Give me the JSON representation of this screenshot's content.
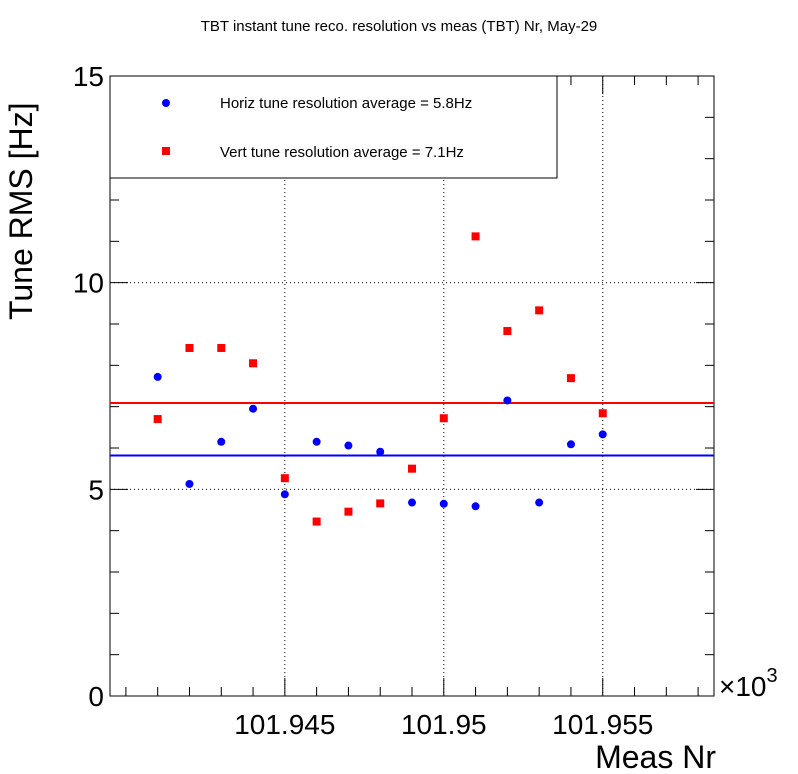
{
  "chart_data": {
    "type": "scatter",
    "title": "TBT instant tune reco. resolution vs meas (TBT) Nr, May-29",
    "xlabel": "Meas Nr",
    "ylabel": "Tune RMS [Hz]",
    "x_multiplier": "×10",
    "x_multiplier_exp": "3",
    "xlim": [
      101.9395,
      101.9585
    ],
    "ylim": [
      0,
      15
    ],
    "x_ticks": [
      101.945,
      101.95,
      101.955
    ],
    "x_tick_labels": [
      "101.945",
      "101.95",
      "101.955"
    ],
    "y_ticks": [
      0,
      5,
      10,
      15
    ],
    "y_tick_labels": [
      "0",
      "5",
      "10",
      "15"
    ],
    "grid": true,
    "legend_position": "top-left",
    "series": [
      {
        "name": "Horiz tune resolution average = 5.8Hz",
        "color": "#0000ff",
        "marker": "circle",
        "x": [
          101.941,
          101.942,
          101.943,
          101.944,
          101.945,
          101.946,
          101.947,
          101.948,
          101.949,
          101.95,
          101.951,
          101.952,
          101.953,
          101.954,
          101.955
        ],
        "y": [
          7.72,
          5.13,
          6.15,
          6.95,
          4.88,
          6.15,
          6.06,
          5.91,
          4.68,
          4.65,
          4.59,
          7.15,
          4.68,
          6.09,
          6.33
        ],
        "average": 5.82
      },
      {
        "name": "Vert tune resolution average = 7.1Hz",
        "color": "#ff0000",
        "marker": "square",
        "x": [
          101.941,
          101.942,
          101.943,
          101.944,
          101.945,
          101.946,
          101.947,
          101.948,
          101.949,
          101.95,
          101.951,
          101.952,
          101.953,
          101.954,
          101.955
        ],
        "y": [
          6.7,
          8.42,
          8.42,
          8.05,
          5.27,
          4.22,
          4.46,
          4.66,
          5.5,
          6.72,
          11.12,
          8.83,
          9.33,
          7.69,
          6.84
        ],
        "average": 7.09
      }
    ]
  }
}
